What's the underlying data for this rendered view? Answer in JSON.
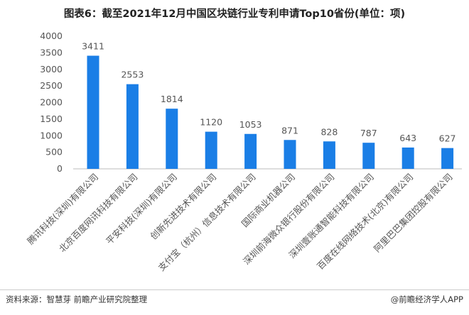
{
  "title": "图表6：截至2021年12月中国区块链行业专利申请Top10省份(单位：项)",
  "source": "资料来源：智慧芽 前瞻产业研究院整理",
  "credit": "@前瞻经济学人APP",
  "watermark": "前瞻产业研究院",
  "chart_data": {
    "type": "bar",
    "title": "图表6：截至2021年12月中国区块链行业专利申请Top10省份(单位：项)",
    "categories": [
      "腾讯科技(深圳)有限公司",
      "北京百度网讯科技有限公司",
      "平安科技(深圳)有限公司",
      "创新先进技术有限公司",
      "支付宝（杭州）信息技术有限公司",
      "国际商业机器公司",
      "深圳前海微众银行股份有限公司",
      "深圳壹账通智能科技有限公司",
      "百度在线网络技术(北京)有限公司",
      "阿里巴巴集团控股有限公司"
    ],
    "values": [
      3411,
      2553,
      1814,
      1120,
      1053,
      871,
      828,
      787,
      643,
      627
    ],
    "ylim": [
      0,
      4000
    ],
    "yticks": [
      0,
      500,
      1000,
      1500,
      2000,
      2500,
      3000,
      3500,
      4000
    ],
    "bar_color": "#1a7ee6",
    "grid": false,
    "legend": "none"
  }
}
